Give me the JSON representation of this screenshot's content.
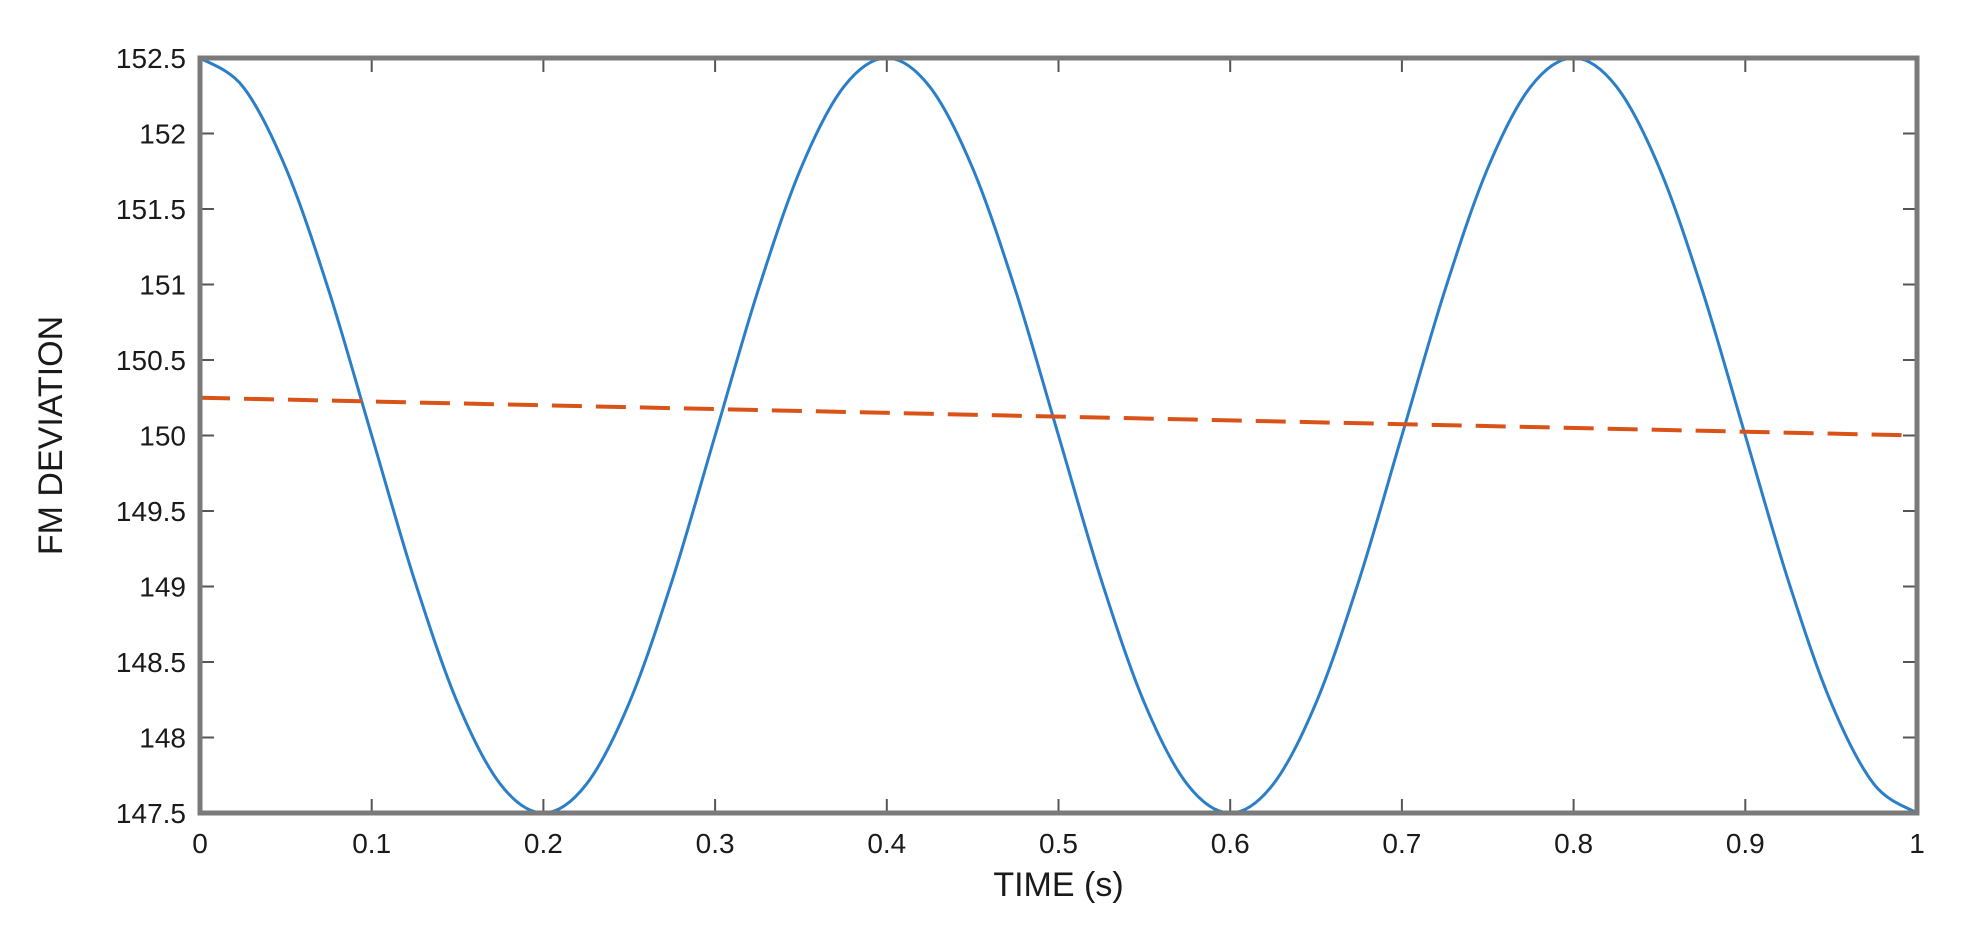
{
  "chart_data": {
    "type": "line",
    "title": "",
    "xlabel": "TIME (s)",
    "ylabel": "FM DEVIATION",
    "xlim": [
      0,
      1
    ],
    "ylim": [
      147.5,
      152.5
    ],
    "xticks": [
      0,
      0.1,
      0.2,
      0.3,
      0.4,
      0.5,
      0.6,
      0.7,
      0.8,
      0.9,
      1
    ],
    "xtick_labels": [
      "0",
      "0.1",
      "0.2",
      "0.3",
      "0.4",
      "0.5",
      "0.6",
      "0.7",
      "0.8",
      "0.9",
      "1"
    ],
    "yticks": [
      147.5,
      148,
      148.5,
      149,
      149.5,
      150,
      150.5,
      151,
      151.5,
      152,
      152.5
    ],
    "ytick_labels": [
      "147.5",
      "148",
      "148.5",
      "149",
      "149.5",
      "150",
      "150.5",
      "151",
      "151.5",
      "152",
      "152.5"
    ],
    "grid": false,
    "legend": "none",
    "series": [
      {
        "style": "solid",
        "color": "#2a7fc8",
        "x": [
          0,
          0.025,
          0.05,
          0.075,
          0.1,
          0.125,
          0.15,
          0.175,
          0.2,
          0.225,
          0.25,
          0.275,
          0.3,
          0.325,
          0.35,
          0.375,
          0.4,
          0.425,
          0.45,
          0.475,
          0.5,
          0.525,
          0.55,
          0.575,
          0.6,
          0.625,
          0.65,
          0.675,
          0.7,
          0.725,
          0.75,
          0.775,
          0.8,
          0.825,
          0.85,
          0.875,
          0.9,
          0.925,
          0.95,
          0.975,
          1
        ],
        "y": [
          152.5,
          152.31,
          151.77,
          150.96,
          150.0,
          149.04,
          148.23,
          147.69,
          147.5,
          147.69,
          148.23,
          149.04,
          150.0,
          150.96,
          151.77,
          152.31,
          152.5,
          152.31,
          151.77,
          150.96,
          150.0,
          149.04,
          148.23,
          147.69,
          147.5,
          147.69,
          148.23,
          149.04,
          150.0,
          150.96,
          151.77,
          152.31,
          152.5,
          152.31,
          151.77,
          150.96,
          150.0,
          149.04,
          148.23,
          147.69,
          147.5
        ]
      },
      {
        "style": "dashed",
        "color": "#d95319",
        "x": [
          0,
          1
        ],
        "y": [
          150.25,
          150.0
        ]
      }
    ]
  }
}
